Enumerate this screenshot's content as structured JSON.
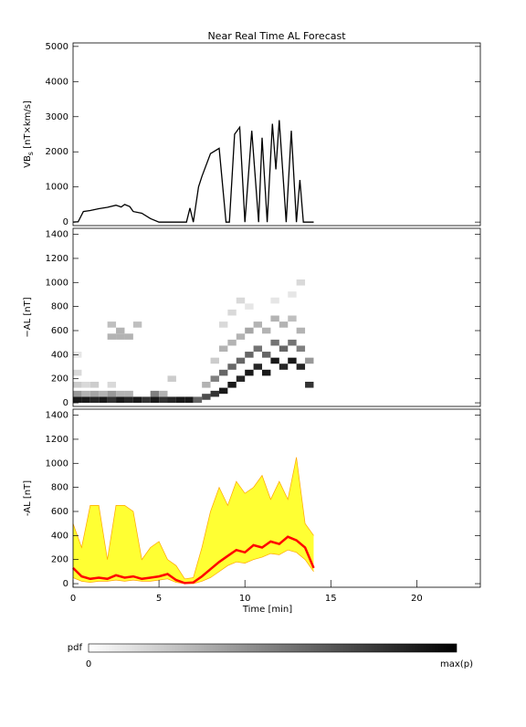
{
  "chart_data": [
    {
      "type": "line",
      "title": "Near Real Time AL Forecast",
      "ylabel": [
        "VB",
        "s",
        " [nT×km/s]"
      ],
      "xlim": [
        0,
        23.7
      ],
      "ylim": [
        -100,
        5100
      ],
      "yticks": [
        0,
        1000,
        2000,
        3000,
        4000,
        5000
      ],
      "series": [
        {
          "color": "#000000",
          "x": [
            0,
            0.3,
            0.6,
            1.0,
            1.5,
            2.0,
            2.5,
            2.8,
            3.0,
            3.3,
            3.5,
            4.0,
            4.5,
            5.0,
            6.6,
            6.8,
            7.0,
            7.3,
            7.5,
            8.0,
            8.5,
            8.9,
            9.1,
            9.4,
            9.7,
            10.0,
            10.4,
            10.8,
            11.0,
            11.3,
            11.6,
            11.8,
            12.0,
            12.4,
            12.7,
            13.0,
            13.2,
            13.4,
            14.0
          ],
          "values": [
            0,
            10,
            300,
            330,
            380,
            420,
            480,
            430,
            500,
            440,
            300,
            250,
            100,
            0,
            0,
            400,
            0,
            1000,
            1300,
            1950,
            2100,
            0,
            0,
            2500,
            2700,
            0,
            2600,
            0,
            2400,
            0,
            2800,
            1500,
            2900,
            0,
            2600,
            0,
            1200,
            0,
            0
          ]
        }
      ]
    },
    {
      "type": "heatmap",
      "ylabel": "−AL [nT]",
      "xlim": [
        0,
        23.7
      ],
      "ylim": [
        -30,
        1450
      ],
      "yticks": [
        0,
        200,
        400,
        600,
        800,
        1000,
        1200,
        1400
      ],
      "cell_size": [
        0.5,
        50
      ],
      "cells": [
        [
          0.25,
          25,
          0.9
        ],
        [
          0.75,
          25,
          0.9
        ],
        [
          1.25,
          25,
          0.85
        ],
        [
          1.75,
          25,
          0.9
        ],
        [
          2.25,
          25,
          0.8
        ],
        [
          2.75,
          25,
          0.9
        ],
        [
          3.25,
          25,
          0.85
        ],
        [
          3.75,
          25,
          0.9
        ],
        [
          4.25,
          25,
          0.8
        ],
        [
          4.75,
          25,
          0.9
        ],
        [
          5.25,
          25,
          0.8
        ],
        [
          5.75,
          25,
          0.85
        ],
        [
          6.25,
          25,
          0.9
        ],
        [
          6.75,
          25,
          0.9
        ],
        [
          7.25,
          25,
          0.6
        ],
        [
          0.25,
          75,
          0.4
        ],
        [
          0.75,
          75,
          0.3
        ],
        [
          1.25,
          75,
          0.35
        ],
        [
          1.75,
          75,
          0.3
        ],
        [
          2.25,
          75,
          0.4
        ],
        [
          2.75,
          75,
          0.3
        ],
        [
          3.25,
          75,
          0.3
        ],
        [
          4.75,
          75,
          0.5
        ],
        [
          5.25,
          75,
          0.3
        ],
        [
          0.25,
          150,
          0.2
        ],
        [
          0.75,
          150,
          0.15
        ],
        [
          1.25,
          150,
          0.2
        ],
        [
          2.25,
          150,
          0.15
        ],
        [
          0.25,
          250,
          0.15
        ],
        [
          0.25,
          400,
          0.1
        ],
        [
          5.75,
          200,
          0.2
        ],
        [
          2.25,
          550,
          0.3
        ],
        [
          2.75,
          550,
          0.3
        ],
        [
          3.25,
          550,
          0.3
        ],
        [
          2.75,
          600,
          0.3
        ],
        [
          2.25,
          650,
          0.25
        ],
        [
          3.75,
          650,
          0.25
        ],
        [
          7.75,
          50,
          0.7
        ],
        [
          8.25,
          75,
          0.8
        ],
        [
          8.75,
          100,
          0.9
        ],
        [
          9.25,
          150,
          0.9
        ],
        [
          9.75,
          200,
          0.85
        ],
        [
          10.25,
          250,
          0.9
        ],
        [
          10.75,
          300,
          0.85
        ],
        [
          11.25,
          250,
          0.9
        ],
        [
          11.75,
          350,
          0.9
        ],
        [
          12.25,
          300,
          0.85
        ],
        [
          12.75,
          350,
          0.9
        ],
        [
          13.25,
          300,
          0.85
        ],
        [
          13.75,
          150,
          0.8
        ],
        [
          7.75,
          150,
          0.3
        ],
        [
          8.25,
          200,
          0.5
        ],
        [
          8.75,
          250,
          0.6
        ],
        [
          9.25,
          300,
          0.6
        ],
        [
          9.75,
          350,
          0.6
        ],
        [
          10.25,
          400,
          0.6
        ],
        [
          10.75,
          450,
          0.55
        ],
        [
          11.25,
          400,
          0.6
        ],
        [
          11.75,
          500,
          0.55
        ],
        [
          12.25,
          450,
          0.6
        ],
        [
          12.75,
          500,
          0.55
        ],
        [
          13.25,
          450,
          0.5
        ],
        [
          13.75,
          350,
          0.4
        ],
        [
          8.25,
          350,
          0.2
        ],
        [
          8.75,
          450,
          0.3
        ],
        [
          9.25,
          500,
          0.3
        ],
        [
          9.75,
          550,
          0.3
        ],
        [
          10.25,
          600,
          0.35
        ],
        [
          10.75,
          650,
          0.3
        ],
        [
          11.25,
          600,
          0.3
        ],
        [
          11.75,
          700,
          0.3
        ],
        [
          12.25,
          650,
          0.3
        ],
        [
          12.75,
          700,
          0.25
        ],
        [
          13.25,
          600,
          0.3
        ],
        [
          8.75,
          650,
          0.15
        ],
        [
          9.25,
          750,
          0.15
        ],
        [
          9.75,
          850,
          0.15
        ],
        [
          10.25,
          800,
          0.1
        ],
        [
          11.75,
          850,
          0.1
        ],
        [
          12.75,
          900,
          0.1
        ],
        [
          13.25,
          1000,
          0.15
        ]
      ],
      "colorbar": {
        "label": "pdf",
        "min_label": "0",
        "max_label": "max(p)"
      }
    },
    {
      "type": "band",
      "ylabel": "-AL [nT]",
      "xlabel": "Time [min]",
      "xlim": [
        0,
        23.7
      ],
      "ylim": [
        -30,
        1450
      ],
      "xticks": [
        0,
        5,
        10,
        15,
        20
      ],
      "yticks": [
        0,
        200,
        400,
        600,
        800,
        1000,
        1200,
        1400
      ],
      "x": [
        0,
        0.5,
        1,
        1.5,
        2,
        2.5,
        3,
        3.5,
        4,
        4.5,
        5,
        5.5,
        6,
        6.5,
        7,
        7.5,
        8,
        8.5,
        9,
        9.5,
        10,
        10.5,
        11,
        11.5,
        12,
        12.5,
        13,
        13.5,
        14
      ],
      "series": [
        {
          "name": "upper",
          "color": "#ffa500",
          "values": [
            500,
            300,
            650,
            650,
            200,
            650,
            650,
            600,
            200,
            300,
            350,
            200,
            150,
            40,
            50,
            300,
            600,
            800,
            650,
            850,
            750,
            800,
            900,
            700,
            850,
            700,
            1050,
            500,
            400
          ]
        },
        {
          "name": "lower",
          "color": "#ffa500",
          "values": [
            50,
            20,
            10,
            20,
            20,
            30,
            20,
            30,
            20,
            20,
            30,
            40,
            10,
            0,
            0,
            20,
            50,
            100,
            150,
            180,
            170,
            200,
            220,
            250,
            240,
            280,
            260,
            200,
            100
          ]
        },
        {
          "name": "median",
          "color": "#ff0000",
          "values": [
            130,
            60,
            40,
            50,
            40,
            70,
            50,
            60,
            40,
            50,
            60,
            80,
            30,
            5,
            10,
            60,
            120,
            180,
            230,
            280,
            260,
            320,
            300,
            350,
            330,
            390,
            360,
            300,
            130
          ]
        }
      ],
      "fill_color": "#ffff33"
    }
  ]
}
